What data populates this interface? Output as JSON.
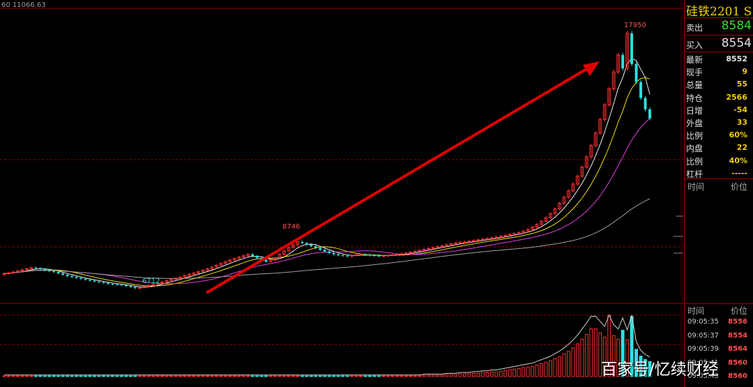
{
  "header": {
    "top_left_text": "60 11066.63"
  },
  "quote": {
    "title": "硅铁2201  S",
    "ask": {
      "label": "卖出",
      "value": "8584"
    },
    "bid": {
      "label": "买入",
      "value": "8554"
    },
    "stats": [
      {
        "label": "最新",
        "value": "8552",
        "color": "#e0e0e0"
      },
      {
        "label": "现手",
        "value": "9",
        "color": "#f0d000"
      },
      {
        "label": "总量",
        "value": "55",
        "color": "#f0d000"
      },
      {
        "label": "持仓",
        "value": "2566",
        "color": "#f0d000"
      },
      {
        "label": "日增",
        "value": "-54",
        "color": "#f0d000"
      },
      {
        "label": "外盘",
        "value": "33",
        "color": "#f0d000"
      },
      {
        "label": "比例",
        "value": "60%",
        "color": "#f0d000"
      },
      {
        "label": "内盘",
        "value": "22",
        "color": "#f0d000"
      },
      {
        "label": "比例",
        "value": "40%",
        "color": "#f0d000"
      },
      {
        "label": "杠杆",
        "value": "-----",
        "color": "#f0d000"
      }
    ],
    "ticks_header_1": {
      "time": "时间",
      "price": "价位"
    },
    "ticks_header_2": {
      "time": "时间",
      "price": "价位"
    },
    "ticks": [
      {
        "time": "09:05:35",
        "price": "8556"
      },
      {
        "time": "09:05:37",
        "price": "8554"
      },
      {
        "time": "09:05:39",
        "price": "8564"
      },
      {
        "time": "09:05:41",
        "price": "8560"
      },
      {
        "time": "09:05:43",
        "price": "8560"
      }
    ]
  },
  "chart_data": {
    "type": "candlestick",
    "price_labels": {
      "low": "6712",
      "mid_high": "8746",
      "peak": "17950"
    },
    "annotation": "red trend arrow rising from the 6712 low toward the 17950 peak",
    "closes": [
      7350,
      7380,
      7420,
      7470,
      7520,
      7560,
      7610,
      7590,
      7540,
      7500,
      7460,
      7420,
      7360,
      7300,
      7240,
      7200,
      7160,
      7120,
      7080,
      7040,
      7000,
      6970,
      6940,
      6900,
      6880,
      6860,
      6840,
      6800,
      6760,
      6712,
      6730,
      6780,
      6830,
      6880,
      6930,
      6980,
      7040,
      7100,
      7150,
      7200,
      7260,
      7320,
      7380,
      7440,
      7500,
      7560,
      7640,
      7720,
      7800,
      7880,
      7950,
      8020,
      8080,
      8140,
      8200,
      8120,
      8040,
      7960,
      7880,
      7950,
      8050,
      8200,
      8350,
      8500,
      8620,
      8746,
      8700,
      8640,
      8560,
      8480,
      8400,
      8330,
      8260,
      8200,
      8160,
      8140,
      8120,
      8150,
      8180,
      8200,
      8180,
      8160,
      8140,
      8130,
      8140,
      8160,
      8180,
      8200,
      8230,
      8260,
      8300,
      8340,
      8380,
      8420,
      8460,
      8500,
      8540,
      8580,
      8620,
      8660,
      8700,
      8720,
      8750,
      8780,
      8810,
      8840,
      8870,
      8900,
      8930,
      8960,
      9000,
      9040,
      9080,
      9120,
      9160,
      9220,
      9300,
      9400,
      9520,
      9660,
      9820,
      10000,
      10200,
      10450,
      10720,
      11000,
      11300,
      11650,
      12050,
      12500,
      13000,
      13550,
      14150,
      14800,
      15500,
      16250,
      17000,
      16400,
      17950,
      16600,
      15800,
      15100,
      14600,
      14200
    ],
    "volume": [
      1,
      1,
      1,
      1,
      1,
      1,
      1,
      1,
      1,
      1,
      1,
      1,
      1,
      1,
      1,
      1,
      1,
      1,
      1,
      1,
      1,
      1,
      1,
      1,
      1,
      1,
      1,
      1,
      1,
      1,
      1,
      1,
      1,
      1,
      1,
      1,
      1,
      1,
      1,
      1,
      1,
      1,
      1,
      1,
      1,
      1,
      1,
      1,
      1,
      1,
      1,
      1,
      1,
      1,
      1,
      1,
      1,
      1,
      1,
      1,
      1,
      1,
      1,
      1,
      1,
      1,
      1,
      1,
      1,
      1,
      1,
      1,
      1,
      1,
      1,
      1,
      1,
      1,
      1,
      1,
      1,
      1,
      1,
      1,
      1,
      1,
      1,
      1,
      1,
      1,
      1,
      1,
      1,
      2,
      2,
      2,
      2,
      2,
      3,
      3,
      3,
      4,
      4,
      4,
      5,
      5,
      6,
      6,
      7,
      7,
      8,
      9,
      10,
      11,
      12,
      13,
      14,
      15,
      17,
      19,
      21,
      23,
      26,
      29,
      33,
      37,
      42,
      48,
      55,
      62,
      70,
      70,
      64,
      58,
      90,
      60,
      55,
      68,
      54,
      88,
      40,
      30,
      25,
      22
    ],
    "ma_windows": [
      5,
      10,
      20,
      60
    ]
  },
  "watermark": "百家号/忆续财经"
}
